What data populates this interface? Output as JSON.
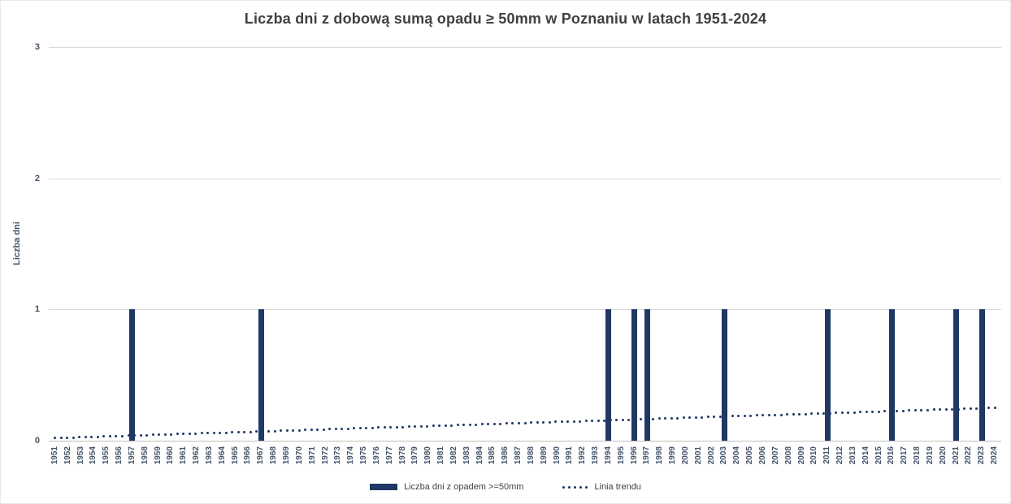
{
  "title": "Liczba dni z dobową sumą opadu ≥ 50mm w Poznaniu w latach 1951-2024",
  "y_axis": {
    "title": "Liczba dni",
    "ticks": [
      0,
      1,
      2,
      3
    ],
    "max": 3
  },
  "legend": {
    "bars_label": "Liczba dni z opadem >=50mm",
    "trend_label": "Linia trendu"
  },
  "colors": {
    "bar": "#1F3864",
    "trend": "#1F3864",
    "gridline": "#D9D9D9",
    "axis_line": "#BFBFBF",
    "title_text": "#404040",
    "tick_text": "#44546A",
    "legend_text": "#404040"
  },
  "chart_data": {
    "type": "bar",
    "title": "Liczba dni z dobową sumą opadu ≥ 50mm w Poznaniu w latach 1951-2024",
    "xlabel": "",
    "ylabel": "Liczba dni",
    "ylim": [
      0,
      3
    ],
    "grid": true,
    "legend_position": "bottom",
    "categories": [
      1951,
      1952,
      1953,
      1954,
      1955,
      1956,
      1957,
      1958,
      1959,
      1960,
      1961,
      1962,
      1963,
      1964,
      1965,
      1966,
      1967,
      1968,
      1969,
      1970,
      1971,
      1972,
      1973,
      1974,
      1975,
      1976,
      1977,
      1978,
      1979,
      1980,
      1981,
      1982,
      1983,
      1984,
      1985,
      1986,
      1987,
      1988,
      1989,
      1990,
      1991,
      1992,
      1993,
      1994,
      1995,
      1996,
      1997,
      1998,
      1999,
      2000,
      2001,
      2002,
      2003,
      2004,
      2005,
      2006,
      2007,
      2008,
      2009,
      2010,
      2011,
      2012,
      2013,
      2014,
      2015,
      2016,
      2017,
      2018,
      2019,
      2020,
      2021,
      2022,
      2023,
      2024
    ],
    "series": [
      {
        "name": "Liczba dni z opadem >=50mm",
        "type": "bar",
        "values": [
          0,
          0,
          0,
          0,
          0,
          0,
          1,
          0,
          0,
          0,
          0,
          0,
          0,
          0,
          0,
          0,
          1,
          0,
          0,
          0,
          0,
          0,
          0,
          0,
          0,
          0,
          0,
          0,
          0,
          0,
          0,
          0,
          0,
          0,
          0,
          0,
          0,
          0,
          0,
          0,
          0,
          0,
          0,
          1,
          0,
          1,
          1,
          0,
          0,
          0,
          0,
          0,
          1,
          0,
          0,
          0,
          0,
          0,
          0,
          0,
          1,
          0,
          0,
          0,
          0,
          1,
          0,
          0,
          0,
          0,
          1,
          0,
          1,
          0
        ]
      },
      {
        "name": "Linia trendu",
        "type": "line",
        "style": "dotted",
        "trend": {
          "start_value": 0.02,
          "end_value": 0.25
        }
      }
    ],
    "years_with_one_day": [
      1957,
      1967,
      1994,
      1996,
      1997,
      2003,
      2011,
      2016,
      2021,
      2023
    ]
  }
}
